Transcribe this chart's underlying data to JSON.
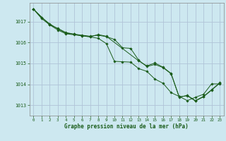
{
  "title": "Graphe pression niveau de la mer (hPa)",
  "background_color": "#cde8f0",
  "grid_color": "#b0c4d8",
  "line_color": "#1a5c1a",
  "marker_color": "#1a5c1a",
  "xlim": [
    -0.5,
    23.5
  ],
  "ylim": [
    1012.5,
    1017.9
  ],
  "yticks": [
    1013,
    1014,
    1015,
    1016,
    1017
  ],
  "xticks": [
    0,
    1,
    2,
    3,
    4,
    5,
    6,
    7,
    8,
    9,
    10,
    11,
    12,
    13,
    14,
    15,
    16,
    17,
    18,
    19,
    20,
    21,
    22,
    23
  ],
  "series1_x": [
    0,
    1,
    2,
    3,
    4,
    5,
    6,
    7,
    8,
    9,
    10,
    11,
    12,
    13,
    14,
    15,
    16,
    17,
    18,
    19,
    20,
    21,
    22,
    23
  ],
  "series1_y": [
    1017.6,
    1017.2,
    1016.9,
    1016.65,
    1016.45,
    1016.4,
    1016.35,
    1016.3,
    1016.35,
    1016.28,
    1016.15,
    1015.75,
    1015.72,
    1015.15,
    1014.85,
    1014.95,
    1014.8,
    1014.5,
    1013.4,
    1013.45,
    1013.2,
    1013.4,
    1013.72,
    1014.05
  ],
  "series2_x": [
    0,
    1,
    2,
    3,
    4,
    5,
    6,
    7,
    8,
    9,
    10,
    11,
    12,
    13,
    14,
    15,
    16,
    17,
    18,
    19,
    20,
    21,
    22,
    23
  ],
  "series2_y": [
    1017.6,
    1017.15,
    1016.85,
    1016.6,
    1016.42,
    1016.37,
    1016.32,
    1016.27,
    1016.2,
    1015.95,
    1015.1,
    1015.08,
    1015.06,
    1014.75,
    1014.62,
    1014.25,
    1014.05,
    1013.6,
    1013.42,
    1013.22,
    1013.38,
    1013.52,
    1014.02,
    1014.02
  ],
  "series3_x": [
    0,
    2,
    3,
    4,
    5,
    6,
    7,
    8,
    9,
    13,
    14,
    15,
    16,
    17,
    18,
    19,
    20,
    21,
    22,
    23
  ],
  "series3_y": [
    1017.6,
    1016.85,
    1016.68,
    1016.48,
    1016.4,
    1016.32,
    1016.28,
    1016.38,
    1016.3,
    1015.12,
    1014.88,
    1015.02,
    1014.82,
    1014.52,
    1013.38,
    1013.47,
    1013.22,
    1013.42,
    1013.74,
    1014.07
  ]
}
